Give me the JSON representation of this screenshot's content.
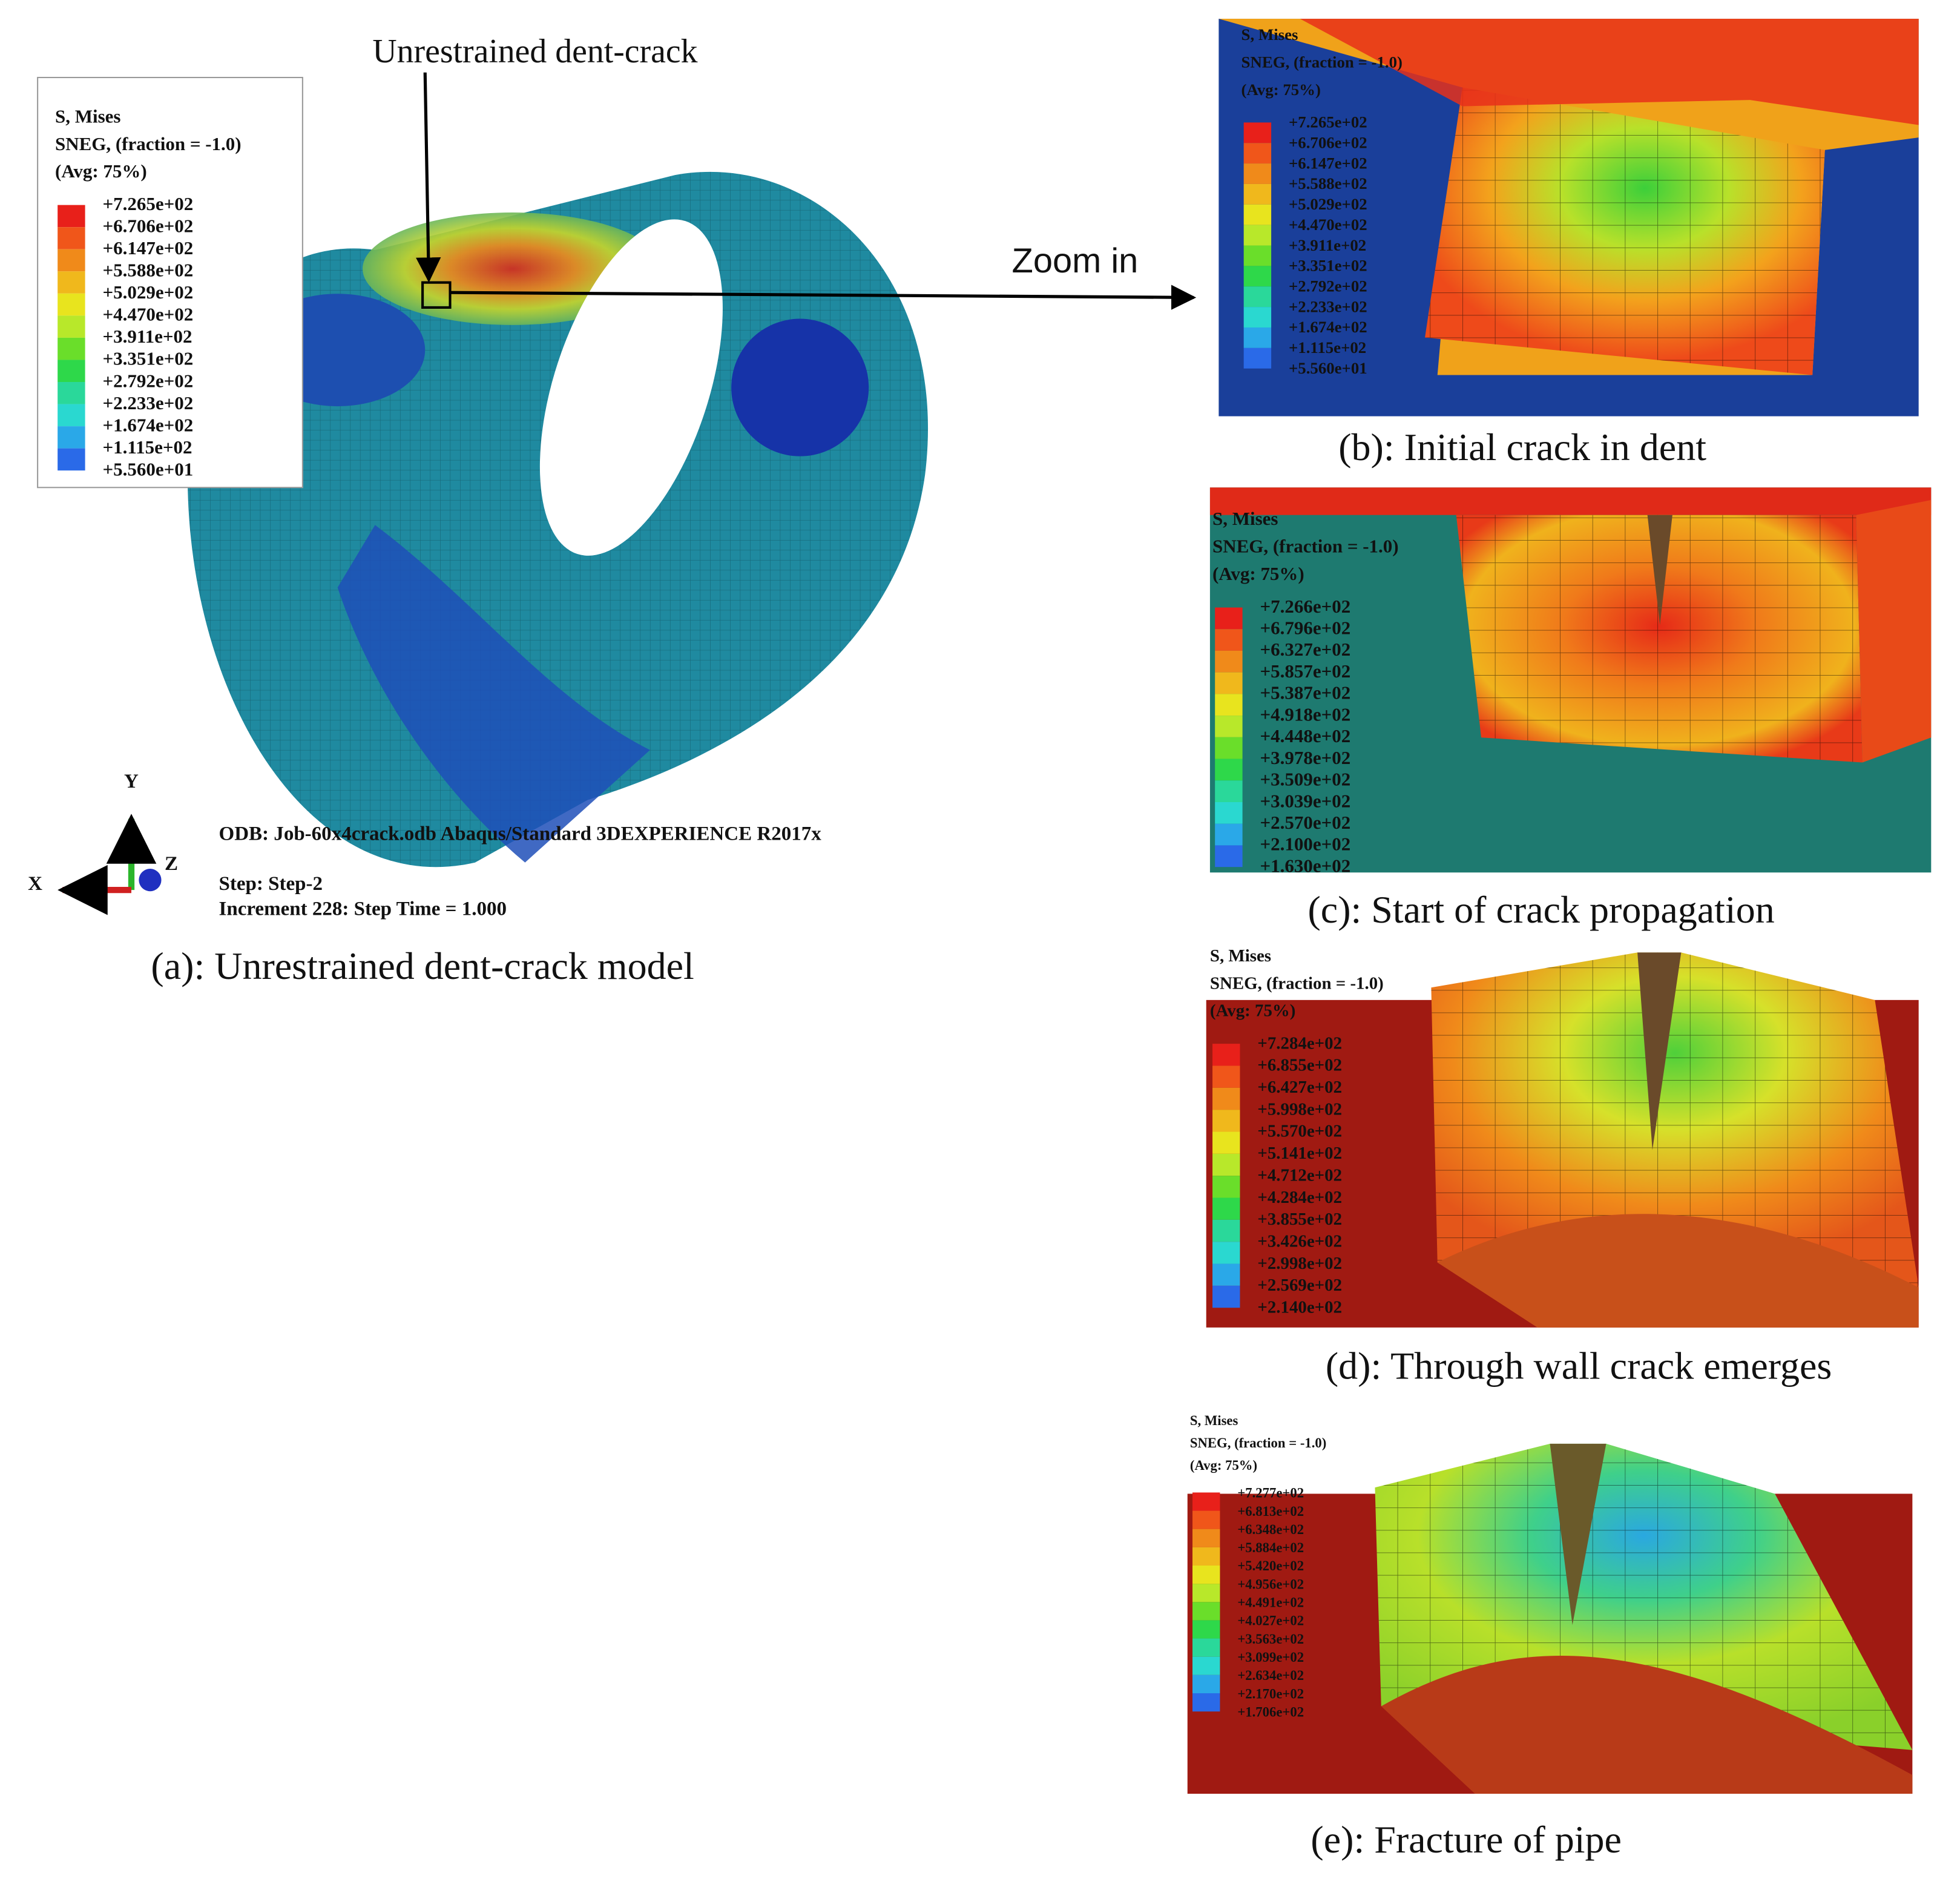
{
  "annotations": {
    "callout": "Unrestrained dent-crack",
    "zoom": "Zoom in"
  },
  "triad": {
    "y": "Y",
    "x": "X",
    "z": "Z"
  },
  "odb_info": {
    "line1": "ODB: Job-60x4crack.odb    Abaqus/Standard 3DEXPERIENCE R2017x",
    "step": "Step: Step-2",
    "increment": "Increment    228: Step Time =    1.000"
  },
  "panels": [
    {
      "caption": "(a): Unrestrained dent-crack model",
      "legend": {
        "title": [
          "S, Mises",
          "SNEG, (fraction = -1.0)",
          "(Avg: 75%)"
        ],
        "values": [
          "+7.265e+02",
          "+6.706e+02",
          "+6.147e+02",
          "+5.588e+02",
          "+5.029e+02",
          "+4.470e+02",
          "+3.911e+02",
          "+3.351e+02",
          "+2.792e+02",
          "+2.233e+02",
          "+1.674e+02",
          "+1.115e+02",
          "+5.560e+01"
        ]
      }
    },
    {
      "caption": "(b): Initial crack in dent",
      "legend": {
        "title": [
          "S, Mises",
          "SNEG, (fraction = -1.0)",
          "(Avg: 75%)"
        ],
        "values": [
          "+7.265e+02",
          "+6.706e+02",
          "+6.147e+02",
          "+5.588e+02",
          "+5.029e+02",
          "+4.470e+02",
          "+3.911e+02",
          "+3.351e+02",
          "+2.792e+02",
          "+2.233e+02",
          "+1.674e+02",
          "+1.115e+02",
          "+5.560e+01"
        ]
      }
    },
    {
      "caption": "(c): Start of crack propagation",
      "legend": {
        "title": [
          "S, Mises",
          "SNEG, (fraction = -1.0)",
          "(Avg: 75%)"
        ],
        "values": [
          "+7.266e+02",
          "+6.796e+02",
          "+6.327e+02",
          "+5.857e+02",
          "+5.387e+02",
          "+4.918e+02",
          "+4.448e+02",
          "+3.978e+02",
          "+3.509e+02",
          "+3.039e+02",
          "+2.570e+02",
          "+2.100e+02",
          "+1.630e+02"
        ]
      }
    },
    {
      "caption": "(d): Through wall crack emerges",
      "legend": {
        "title": [
          "S, Mises",
          "SNEG, (fraction = -1.0)",
          "(Avg: 75%)"
        ],
        "values": [
          "+7.284e+02",
          "+6.855e+02",
          "+6.427e+02",
          "+5.998e+02",
          "+5.570e+02",
          "+5.141e+02",
          "+4.712e+02",
          "+4.284e+02",
          "+3.855e+02",
          "+3.426e+02",
          "+2.998e+02",
          "+2.569e+02",
          "+2.140e+02"
        ]
      }
    },
    {
      "caption": "(e): Fracture of pipe",
      "legend": {
        "title": [
          "S, Mises",
          "SNEG, (fraction = -1.0)",
          "(Avg: 75%)"
        ],
        "values": [
          "+7.277e+02",
          "+6.813e+02",
          "+6.348e+02",
          "+5.884e+02",
          "+5.420e+02",
          "+4.956e+02",
          "+4.491e+02",
          "+4.027e+02",
          "+3.563e+02",
          "+3.099e+02",
          "+2.634e+02",
          "+2.170e+02",
          "+1.706e+02"
        ]
      }
    }
  ]
}
